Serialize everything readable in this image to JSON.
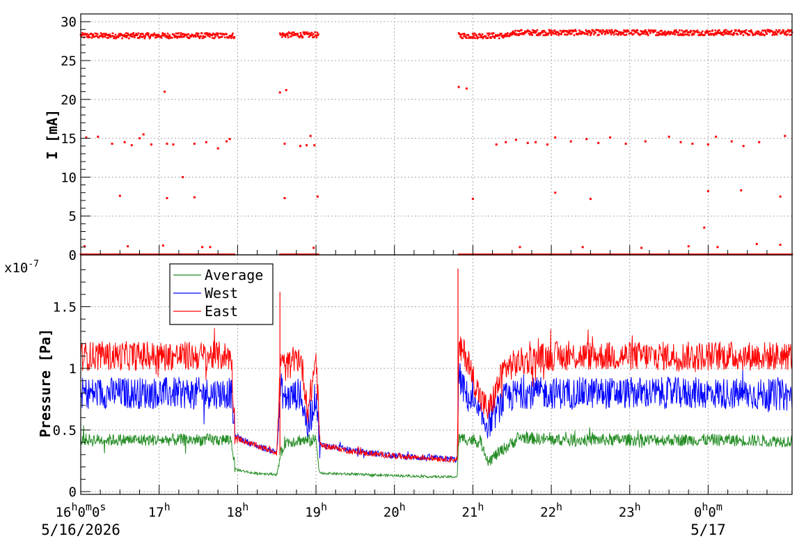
{
  "chart_data": [
    {
      "type": "scatter",
      "panel": "current",
      "ylabel": "I [mA]",
      "ylim": [
        0,
        31
      ],
      "yticks": [
        0,
        5,
        10,
        15,
        20,
        25,
        30
      ],
      "grid": true,
      "x_unit": "hours",
      "xlim": [
        0,
        9.07
      ],
      "series": [
        {
          "color": "#ff0000",
          "segments": [
            {
              "x0": 0.0,
              "x1": 1.96,
              "level": 28.2
            },
            {
              "x0": 2.54,
              "x1": 3.03,
              "level": 28.3
            },
            {
              "x0": 4.82,
              "x1": 5.5,
              "level": 28.2
            },
            {
              "x0": 5.5,
              "x1": 6.0,
              "level": 28.6
            },
            {
              "x0": 6.0,
              "x1": 9.07,
              "level": 28.6
            }
          ],
          "outliers": [
            [
              0.07,
              15.1
            ],
            [
              0.22,
              15.2
            ],
            [
              0.4,
              14.3
            ],
            [
              0.56,
              14.5
            ],
            [
              0.65,
              14.1
            ],
            [
              0.75,
              15.0
            ],
            [
              0.8,
              15.5
            ],
            [
              0.9,
              14.2
            ],
            [
              1.1,
              14.3
            ],
            [
              1.18,
              14.2
            ],
            [
              1.45,
              14.3
            ],
            [
              1.6,
              14.5
            ],
            [
              1.75,
              13.7
            ],
            [
              1.86,
              14.6
            ],
            [
              1.9,
              14.9
            ],
            [
              2.6,
              14.3
            ],
            [
              2.8,
              14.0
            ],
            [
              2.88,
              14.1
            ],
            [
              2.93,
              15.3
            ],
            [
              2.98,
              14.1
            ],
            [
              5.3,
              14.2
            ],
            [
              5.42,
              14.5
            ],
            [
              5.55,
              14.8
            ],
            [
              5.7,
              14.4
            ],
            [
              5.8,
              14.5
            ],
            [
              5.95,
              14.2
            ],
            [
              6.05,
              15.1
            ],
            [
              6.25,
              14.6
            ],
            [
              6.45,
              14.9
            ],
            [
              6.6,
              14.4
            ],
            [
              6.75,
              15.1
            ],
            [
              6.95,
              14.3
            ],
            [
              7.2,
              14.6
            ],
            [
              7.5,
              15.2
            ],
            [
              7.65,
              14.5
            ],
            [
              7.8,
              14.3
            ],
            [
              8.0,
              14.2
            ],
            [
              8.1,
              15.2
            ],
            [
              8.3,
              14.6
            ],
            [
              8.45,
              14.0
            ],
            [
              8.65,
              14.5
            ],
            [
              8.98,
              15.3
            ],
            [
              1.07,
              21.0
            ],
            [
              2.54,
              20.9
            ],
            [
              2.62,
              21.2
            ],
            [
              4.82,
              21.6
            ],
            [
              4.92,
              21.4
            ],
            [
              0.5,
              7.6
            ],
            [
              1.1,
              7.3
            ],
            [
              1.45,
              7.4
            ],
            [
              2.6,
              7.3
            ],
            [
              3.02,
              7.5
            ],
            [
              5.0,
              7.2
            ],
            [
              6.05,
              8.0
            ],
            [
              6.5,
              7.2
            ],
            [
              8.0,
              8.2
            ],
            [
              8.42,
              8.3
            ],
            [
              8.92,
              7.5
            ],
            [
              1.3,
              10.0
            ],
            [
              7.95,
              3.5
            ],
            [
              0.05,
              1.1
            ],
            [
              0.6,
              1.1
            ],
            [
              1.05,
              1.2
            ],
            [
              1.55,
              1.0
            ],
            [
              1.65,
              1.0
            ],
            [
              2.97,
              0.9
            ],
            [
              5.6,
              1.0
            ],
            [
              6.4,
              1.0
            ],
            [
              7.15,
              0.9
            ],
            [
              7.75,
              1.1
            ],
            [
              8.12,
              1.0
            ],
            [
              8.62,
              1.4
            ],
            [
              8.92,
              1.3
            ]
          ]
        }
      ]
    },
    {
      "type": "line",
      "panel": "pressure",
      "ylabel": "Pressure [Pa]",
      "y_multiplier": "x10",
      "y_multiplier_exp": "-7",
      "ylim": [
        0,
        1.9
      ],
      "yticks": [
        "0",
        "0.5",
        "1",
        "1.5"
      ],
      "ytick_values": [
        0,
        0.5,
        1,
        1.5
      ],
      "grid": true,
      "xlim": [
        0,
        9.07
      ],
      "legend_position": "top-left",
      "series": [
        {
          "name": "Average",
          "color": "#228b22",
          "x": [
            0,
            0.5,
            1,
            1.5,
            1.92,
            1.97,
            2.2,
            2.5,
            2.55,
            2.6,
            2.8,
            2.9,
            3.0,
            3.05,
            3.5,
            4.0,
            4.5,
            4.8,
            4.82,
            4.9,
            5.1,
            5.2,
            5.4,
            5.6,
            6.0,
            7.0,
            8.0,
            9.07
          ],
          "values": [
            0.42,
            0.42,
            0.42,
            0.42,
            0.42,
            0.18,
            0.15,
            0.14,
            0.3,
            0.4,
            0.42,
            0.41,
            0.42,
            0.15,
            0.14,
            0.13,
            0.12,
            0.12,
            0.43,
            0.43,
            0.4,
            0.25,
            0.35,
            0.44,
            0.42,
            0.42,
            0.42,
            0.41
          ],
          "noise": 0.05
        },
        {
          "name": "West",
          "color": "#0000ff",
          "x": [
            0,
            0.5,
            1,
            1.5,
            1.92,
            1.97,
            2.2,
            2.5,
            2.55,
            2.6,
            2.8,
            2.9,
            3.0,
            3.05,
            3.5,
            4.0,
            4.5,
            4.8,
            4.82,
            4.9,
            5.1,
            5.2,
            5.4,
            5.6,
            6.0,
            7.0,
            8.0,
            9.07
          ],
          "values": [
            0.8,
            0.8,
            0.8,
            0.8,
            0.8,
            0.45,
            0.38,
            0.32,
            0.85,
            0.75,
            0.8,
            0.5,
            0.8,
            0.38,
            0.33,
            0.29,
            0.27,
            0.26,
            0.95,
            0.8,
            0.6,
            0.55,
            0.75,
            0.8,
            0.8,
            0.8,
            0.8,
            0.78
          ],
          "noise": 0.13
        },
        {
          "name": "East",
          "color": "#ff0000",
          "x": [
            0,
            0.5,
            1,
            1.5,
            1.92,
            1.97,
            2.2,
            2.5,
            2.55,
            2.6,
            2.8,
            2.9,
            3.0,
            3.05,
            3.5,
            4.0,
            4.5,
            4.8,
            4.82,
            4.9,
            5.1,
            5.2,
            5.4,
            5.6,
            6.0,
            7.0,
            8.0,
            9.07
          ],
          "values": [
            1.1,
            1.1,
            1.1,
            1.1,
            1.1,
            0.44,
            0.38,
            0.32,
            1.1,
            1.0,
            1.1,
            0.65,
            1.1,
            0.38,
            0.32,
            0.29,
            0.27,
            0.26,
            1.15,
            1.12,
            0.75,
            0.65,
            1.0,
            1.05,
            1.1,
            1.1,
            1.1,
            1.1
          ],
          "noise": 0.12,
          "spikes": [
            [
              2.54,
              1.62
            ],
            [
              4.81,
              1.81
            ]
          ]
        }
      ]
    }
  ],
  "x_axis": {
    "ticks": [
      {
        "x": 0,
        "hour": "16",
        "extra": "0",
        "extra_unit": "m",
        "extra2": "0",
        "extra2_unit": "s"
      },
      {
        "x": 1,
        "hour": "17"
      },
      {
        "x": 2,
        "hour": "18"
      },
      {
        "x": 3,
        "hour": "19"
      },
      {
        "x": 4,
        "hour": "20"
      },
      {
        "x": 5,
        "hour": "21"
      },
      {
        "x": 6,
        "hour": "22"
      },
      {
        "x": 7,
        "hour": "23"
      },
      {
        "x": 8,
        "hour": "0",
        "extra": "0",
        "extra_unit": "m"
      }
    ],
    "hour_unit": "h",
    "date_left": "5/16/2026",
    "date_right": "5/17"
  }
}
